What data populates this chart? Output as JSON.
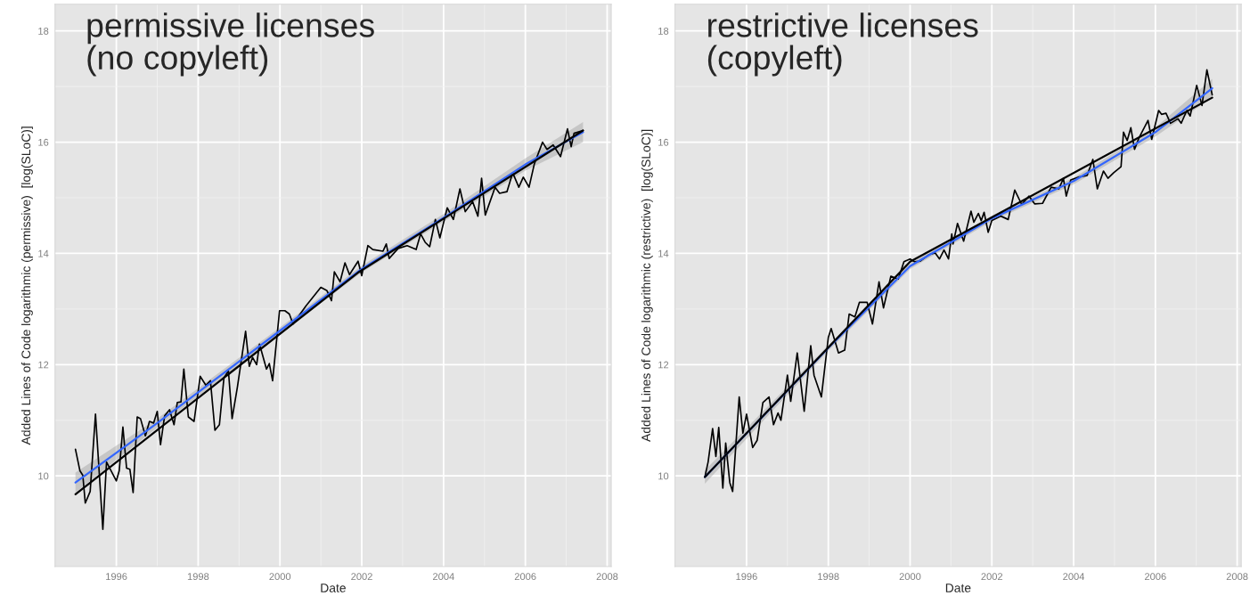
{
  "chart_data": [
    {
      "type": "line",
      "annotations": [
        "permissive licenses\n(no copyleft)"
      ],
      "xlabel": "Date",
      "ylabel": "Added Lines of Code logarithmic (permissive)  [log(SLoC)]",
      "xlim": [
        1994.5,
        2008.1
      ],
      "xticks": [
        1996,
        1998,
        2000,
        2002,
        2004,
        2006,
        2008
      ],
      "ylim": [
        8.37,
        18.48
      ],
      "yticks": [
        10,
        12,
        14,
        16,
        18
      ],
      "grid": true,
      "series": [
        {
          "color": "#000000",
          "x": [
            1995.0,
            1995.11,
            1995.18,
            1995.24,
            1995.36,
            1995.49,
            1995.67,
            1995.76,
            1996.0,
            1996.07,
            1996.16,
            1996.25,
            1996.33,
            1996.41,
            1996.51,
            1996.59,
            1996.71,
            1996.81,
            1996.91,
            1997.0,
            1997.08,
            1997.18,
            1997.3,
            1997.41,
            1997.49,
            1997.58,
            1997.65,
            1997.76,
            1997.9,
            1998.05,
            1998.19,
            1998.3,
            1998.41,
            1998.52,
            1998.63,
            1998.74,
            1998.83,
            1998.96,
            1999.16,
            1999.25,
            1999.33,
            1999.43,
            1999.5,
            1999.67,
            1999.74,
            1999.82,
            1999.99,
            2000.12,
            2000.23,
            2000.32,
            2000.63,
            2001.0,
            2001.15,
            2001.26,
            2001.33,
            2001.47,
            2001.59,
            2001.7,
            2001.91,
            2002.0,
            2002.15,
            2002.27,
            2002.52,
            2002.6,
            2002.67,
            2002.89,
            2003.11,
            2003.33,
            2003.44,
            2003.55,
            2003.66,
            2003.8,
            2003.91,
            2004.09,
            2004.24,
            2004.4,
            2004.53,
            2004.71,
            2004.84,
            2004.93,
            2005.02,
            2005.26,
            2005.37,
            2005.55,
            2005.69,
            2005.84,
            2005.95,
            2006.09,
            2006.22,
            2006.42,
            2006.53,
            2006.68,
            2006.86,
            2007.03,
            2007.12,
            2007.19,
            2007.41
          ],
          "values": [
            10.48,
            10.09,
            10.01,
            9.51,
            9.72,
            11.11,
            9.04,
            10.25,
            9.91,
            10.09,
            10.88,
            10.14,
            10.12,
            9.7,
            11.06,
            11.03,
            10.72,
            10.98,
            10.95,
            11.16,
            10.56,
            11.08,
            11.19,
            10.92,
            11.32,
            11.33,
            11.92,
            11.06,
            10.98,
            11.79,
            11.63,
            11.71,
            10.82,
            10.92,
            11.76,
            11.89,
            11.03,
            11.6,
            12.6,
            11.97,
            12.13,
            12.0,
            12.37,
            11.92,
            12.02,
            11.71,
            12.97,
            12.97,
            12.91,
            12.73,
            13.05,
            13.39,
            13.33,
            13.15,
            13.67,
            13.49,
            13.83,
            13.62,
            13.86,
            13.6,
            14.14,
            14.07,
            14.04,
            14.17,
            13.91,
            14.09,
            14.14,
            14.07,
            14.35,
            14.2,
            14.12,
            14.61,
            14.28,
            14.82,
            14.61,
            15.16,
            14.75,
            14.93,
            14.67,
            15.35,
            14.69,
            15.19,
            15.08,
            15.11,
            15.45,
            15.19,
            15.37,
            15.19,
            15.61,
            16.0,
            15.87,
            15.95,
            15.74,
            16.24,
            15.92,
            16.16,
            16.21
          ]
        },
        {
          "color": "#3366ff",
          "x": [
            1995.0,
            1997.0,
            2000.0,
            2002.0,
            2004.0,
            2006.0,
            2007.41
          ],
          "values": [
            9.88,
            10.95,
            12.61,
            13.72,
            14.64,
            15.6,
            16.18
          ],
          "lower": [
            9.7,
            10.87,
            12.55,
            13.66,
            14.57,
            15.49,
            16.0
          ],
          "upper": [
            10.06,
            11.03,
            12.67,
            13.78,
            14.71,
            15.71,
            16.36
          ]
        },
        {
          "color": "#000000",
          "x": [
            1995.0,
            2001.9,
            2007.41
          ],
          "values": [
            9.67,
            13.65,
            16.21
          ]
        }
      ]
    },
    {
      "type": "line",
      "annotations": [
        "restrictive licenses\n(copyleft)"
      ],
      "xlabel": "Date",
      "ylabel": "Added Lines of Code logarithmic (restrictive)  [log(SLoC)]",
      "xlim": [
        1994.25,
        2008.1
      ],
      "xticks": [
        1996,
        1998,
        2000,
        2002,
        2004,
        2006,
        2008
      ],
      "ylim": [
        8.37,
        18.48
      ],
      "yticks": [
        10,
        12,
        14,
        16,
        18
      ],
      "grid": true,
      "series": [
        {
          "color": "#000000",
          "x": [
            1994.98,
            1995.06,
            1995.17,
            1995.25,
            1995.32,
            1995.42,
            1995.49,
            1995.59,
            1995.66,
            1995.82,
            1995.91,
            1996.0,
            1996.15,
            1996.26,
            1996.4,
            1996.55,
            1996.66,
            1996.77,
            1996.84,
            1997.0,
            1997.08,
            1997.24,
            1997.41,
            1997.57,
            1997.65,
            1997.83,
            1998.0,
            1998.07,
            1998.25,
            1998.4,
            1998.51,
            1998.65,
            1998.76,
            1998.95,
            1999.08,
            1999.24,
            1999.35,
            1999.53,
            1999.71,
            1999.85,
            2000.0,
            2000.11,
            2000.25,
            2000.47,
            2000.61,
            2000.72,
            2000.83,
            2000.94,
            2001.02,
            2001.05,
            2001.16,
            2001.31,
            2001.49,
            2001.56,
            2001.67,
            2001.74,
            2001.81,
            2001.91,
            2002.0,
            2002.22,
            2002.4,
            2002.56,
            2002.73,
            2002.91,
            2003.05,
            2003.24,
            2003.45,
            2003.64,
            2003.75,
            2003.82,
            2003.93,
            2004.11,
            2004.33,
            2004.47,
            2004.58,
            2004.73,
            2004.84,
            2004.98,
            2005.16,
            2005.22,
            2005.31,
            2005.4,
            2005.49,
            2005.6,
            2005.82,
            2005.91,
            2006.08,
            2006.15,
            2006.26,
            2006.37,
            2006.55,
            2006.63,
            2006.77,
            2006.85,
            2007.01,
            2007.14,
            2007.26,
            2007.39
          ],
          "values": [
            9.98,
            10.25,
            10.85,
            10.35,
            10.87,
            9.78,
            10.59,
            9.88,
            9.72,
            11.42,
            10.77,
            11.11,
            10.51,
            10.64,
            11.32,
            11.42,
            10.92,
            11.13,
            11.0,
            11.81,
            11.34,
            12.21,
            11.16,
            12.34,
            11.81,
            11.42,
            12.49,
            12.65,
            12.21,
            12.26,
            12.91,
            12.86,
            13.12,
            13.12,
            12.73,
            13.49,
            13.02,
            13.59,
            13.54,
            13.85,
            13.9,
            13.85,
            13.86,
            13.98,
            14.01,
            13.9,
            14.06,
            13.9,
            14.35,
            14.17,
            14.54,
            14.22,
            14.76,
            14.56,
            14.72,
            14.59,
            14.74,
            14.38,
            14.59,
            14.67,
            14.61,
            15.14,
            14.88,
            15.03,
            14.89,
            14.9,
            15.19,
            15.16,
            15.35,
            15.03,
            15.32,
            15.37,
            15.4,
            15.69,
            15.16,
            15.48,
            15.35,
            15.45,
            15.56,
            16.18,
            16.03,
            16.26,
            15.87,
            16.08,
            16.39,
            16.05,
            16.57,
            16.5,
            16.52,
            16.34,
            16.42,
            16.34,
            16.57,
            16.47,
            17.02,
            16.66,
            17.3,
            16.85
          ]
        },
        {
          "color": "#3366ff",
          "x": [
            1994.98,
            1998.0,
            2000.0,
            2002.0,
            2004.0,
            2006.0,
            2007.39
          ],
          "values": [
            9.98,
            12.3,
            13.77,
            14.63,
            15.3,
            16.18,
            16.97
          ],
          "lower": [
            9.86,
            12.25,
            13.72,
            14.58,
            15.24,
            16.1,
            16.8
          ],
          "upper": [
            10.1,
            12.35,
            13.82,
            14.68,
            15.36,
            16.26,
            17.14
          ]
        },
        {
          "color": "#000000",
          "x": [
            1994.98,
            2000.0,
            2007.39
          ],
          "values": [
            9.98,
            13.85,
            16.8
          ]
        }
      ]
    }
  ]
}
